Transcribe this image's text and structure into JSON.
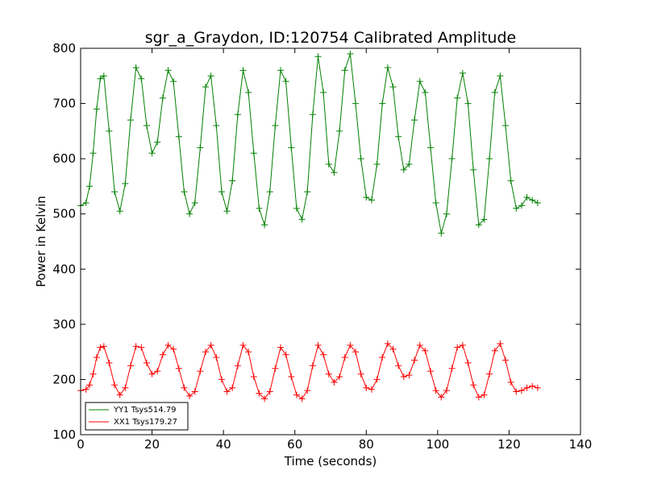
{
  "chart_data": {
    "type": "line",
    "title": "sgr_a_Graydon, ID:120754 Calibrated Amplitude",
    "xlabel": "Time (seconds)",
    "ylabel": "Power in Kelvin",
    "xlim": [
      0,
      140
    ],
    "ylim": [
      100,
      800
    ],
    "xticks": [
      0,
      20,
      40,
      60,
      80,
      100,
      120,
      140
    ],
    "yticks": [
      100,
      200,
      300,
      400,
      500,
      600,
      700,
      800
    ],
    "grid": false,
    "legend_position": "lower-left",
    "marker": "+",
    "series": [
      {
        "name": "YY1 Tsys514.79",
        "color": "#008000",
        "x": [
          0,
          1.5,
          2.5,
          3.5,
          4.5,
          5.5,
          6.5,
          8,
          9.5,
          11,
          12.5,
          14,
          15.5,
          17,
          18.5,
          20,
          21.5,
          23,
          24.5,
          26,
          27.5,
          29,
          30.5,
          32,
          33.5,
          35,
          36.5,
          38,
          39.5,
          41,
          42.5,
          44,
          45.5,
          47,
          48.5,
          50,
          51.5,
          53,
          54.5,
          56,
          57.5,
          59,
          60.5,
          62,
          63.5,
          65,
          66.5,
          68,
          69.5,
          71,
          72.5,
          74,
          75.5,
          77,
          78.5,
          80,
          81.5,
          83,
          84.5,
          86,
          87.5,
          89,
          90.5,
          92,
          93.5,
          95,
          96.5,
          98,
          99.5,
          101,
          102.5,
          104,
          105.5,
          107,
          108.5,
          110,
          111.5,
          113,
          114.5,
          116,
          117.5,
          119,
          120.5,
          122,
          123.5,
          125,
          126.5,
          128
        ],
        "values": [
          515,
          520,
          550,
          610,
          690,
          745,
          750,
          650,
          540,
          505,
          555,
          670,
          765,
          745,
          660,
          610,
          630,
          710,
          760,
          740,
          640,
          540,
          500,
          520,
          620,
          730,
          750,
          660,
          540,
          505,
          560,
          680,
          760,
          720,
          610,
          510,
          480,
          540,
          660,
          760,
          740,
          620,
          510,
          490,
          540,
          680,
          785,
          720,
          590,
          575,
          650,
          760,
          790,
          700,
          600,
          530,
          525,
          590,
          700,
          765,
          730,
          640,
          580,
          590,
          670,
          740,
          720,
          620,
          520,
          465,
          500,
          600,
          710,
          755,
          700,
          580,
          480,
          490,
          600,
          720,
          750,
          660,
          560,
          510,
          515,
          530,
          525,
          520
        ]
      },
      {
        "name": "XX1 Tsys179.27",
        "color": "#ff0000",
        "x": [
          0,
          1.5,
          2.5,
          3.5,
          4.5,
          5.5,
          6.5,
          8,
          9.5,
          11,
          12.5,
          14,
          15.5,
          17,
          18.5,
          20,
          21.5,
          23,
          24.5,
          26,
          27.5,
          29,
          30.5,
          32,
          33.5,
          35,
          36.5,
          38,
          39.5,
          41,
          42.5,
          44,
          45.5,
          47,
          48.5,
          50,
          51.5,
          53,
          54.5,
          56,
          57.5,
          59,
          60.5,
          62,
          63.5,
          65,
          66.5,
          68,
          69.5,
          71,
          72.5,
          74,
          75.5,
          77,
          78.5,
          80,
          81.5,
          83,
          84.5,
          86,
          87.5,
          89,
          90.5,
          92,
          93.5,
          95,
          96.5,
          98,
          99.5,
          101,
          102.5,
          104,
          105.5,
          107,
          108.5,
          110,
          111.5,
          113,
          114.5,
          116,
          117.5,
          119,
          120.5,
          122,
          123.5,
          125,
          126.5,
          128
        ],
        "values": [
          180,
          182,
          190,
          210,
          240,
          258,
          260,
          230,
          190,
          172,
          185,
          225,
          260,
          258,
          230,
          210,
          215,
          245,
          262,
          255,
          220,
          185,
          170,
          178,
          215,
          250,
          262,
          240,
          200,
          178,
          185,
          225,
          262,
          250,
          205,
          175,
          165,
          178,
          220,
          258,
          245,
          205,
          172,
          165,
          180,
          225,
          262,
          245,
          210,
          195,
          205,
          240,
          262,
          250,
          210,
          185,
          182,
          200,
          240,
          265,
          255,
          225,
          205,
          208,
          235,
          262,
          252,
          215,
          180,
          168,
          180,
          220,
          258,
          262,
          230,
          190,
          168,
          172,
          210,
          252,
          265,
          235,
          195,
          178,
          180,
          185,
          188,
          185
        ]
      }
    ]
  }
}
